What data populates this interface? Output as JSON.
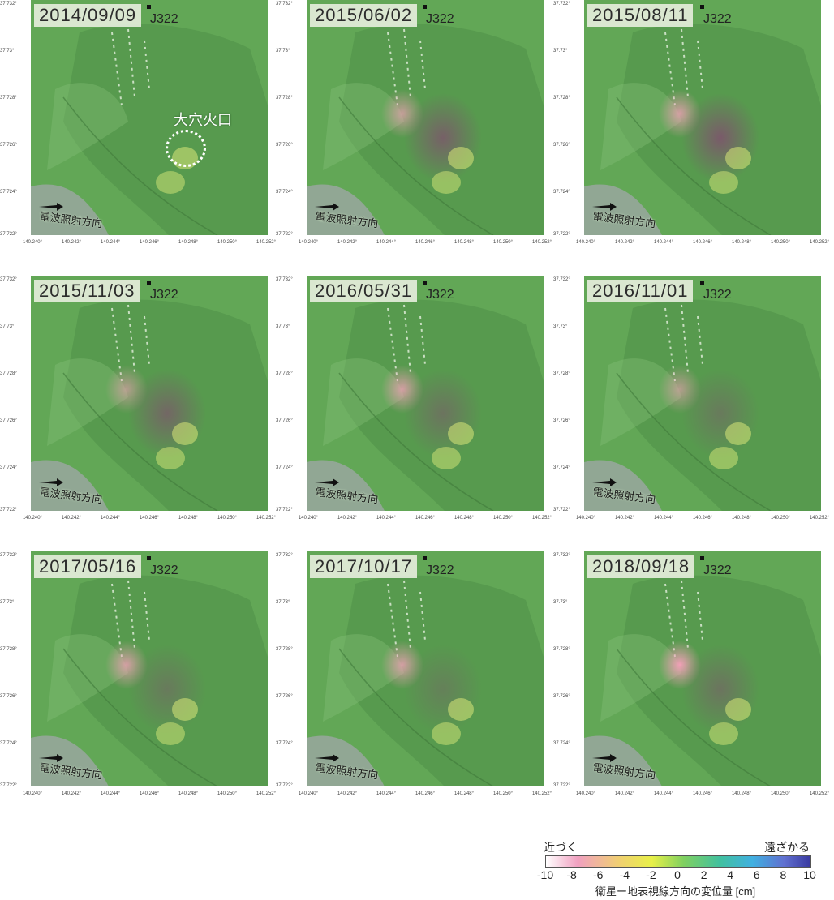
{
  "panels": [
    {
      "date": "2014/09/09",
      "station": "J322",
      "radar": "電波照射方向",
      "crater": "大穴火口",
      "ylabels": [
        "37.732°",
        "37.73°",
        "37.728°",
        "37.726°",
        "37.724°",
        "37.722°"
      ],
      "xlabels": [
        "140.240°",
        "140.242°",
        "140.244°",
        "140.246°",
        "140.248°",
        "140.250°",
        "140.252°"
      ],
      "uplift": 0.0,
      "subside": 0.0
    },
    {
      "date": "2015/06/02",
      "station": "J322",
      "radar": "電波照射方向",
      "ylabels": [
        "37.732°",
        "37.73°",
        "37.728°",
        "37.726°",
        "37.724°",
        "37.722°"
      ],
      "xlabels": [
        "140.240°",
        "140.242°",
        "140.244°",
        "140.246°",
        "140.248°",
        "140.250°",
        "140.252°"
      ],
      "uplift": 0.7,
      "subside": 0.9
    },
    {
      "date": "2015/08/11",
      "station": "J322",
      "radar": "電波照射方向",
      "ylabels": [
        "37.732°",
        "37.73°",
        "37.728°",
        "37.726°",
        "37.724°",
        "37.722°"
      ],
      "xlabels": [
        "140.240°",
        "140.242°",
        "140.244°",
        "140.246°",
        "140.248°",
        "140.250°",
        "140.252°"
      ],
      "uplift": 0.8,
      "subside": 1.0
    },
    {
      "date": "2015/11/03",
      "station": "J322",
      "radar": "電波照射方向",
      "ylabels": [
        "37.732°",
        "37.73°",
        "37.728°",
        "37.726°",
        "37.724°",
        "37.722°"
      ],
      "xlabels": [
        "140.240°",
        "140.242°",
        "140.244°",
        "140.246°",
        "140.248°",
        "140.250°",
        "140.252°"
      ],
      "uplift": 0.6,
      "subside": 0.8
    },
    {
      "date": "2016/05/31",
      "station": "J322",
      "radar": "電波照射方向",
      "ylabels": [
        "37.732°",
        "37.73°",
        "37.728°",
        "37.726°",
        "37.724°",
        "37.722°"
      ],
      "xlabels": [
        "140.240°",
        "140.242°",
        "140.244°",
        "140.246°",
        "140.248°",
        "140.250°",
        "140.252°"
      ],
      "uplift": 0.8,
      "subside": 0.6
    },
    {
      "date": "2016/11/01",
      "station": "J322",
      "radar": "電波照射方向",
      "ylabels": [
        "37.732°",
        "37.73°",
        "37.728°",
        "37.726°",
        "37.724°",
        "37.722°"
      ],
      "xlabels": [
        "140.240°",
        "140.242°",
        "140.244°",
        "140.246°",
        "140.248°",
        "140.250°",
        "140.252°"
      ],
      "uplift": 0.6,
      "subside": 0.5
    },
    {
      "date": "2017/05/16",
      "station": "J322",
      "radar": "電波照射方向",
      "ylabels": [
        "37.732°",
        "37.73°",
        "37.728°",
        "37.726°",
        "37.724°",
        "37.722°"
      ],
      "xlabels": [
        "140.240°",
        "140.242°",
        "140.244°",
        "140.246°",
        "140.248°",
        "140.250°",
        "140.252°"
      ],
      "uplift": 0.8,
      "subside": 0.5
    },
    {
      "date": "2017/10/17",
      "station": "J322",
      "radar": "電波照射方向",
      "ylabels": [
        "37.732°",
        "37.73°",
        "37.728°",
        "37.726°",
        "37.724°",
        "37.722°"
      ],
      "xlabels": [
        "140.240°",
        "140.242°",
        "140.244°",
        "140.246°",
        "140.248°",
        "140.250°",
        "140.252°"
      ],
      "uplift": 0.8,
      "subside": 0.4
    },
    {
      "date": "2018/09/18",
      "station": "J322",
      "radar": "電波照射方向",
      "ylabels": [
        "37.732°",
        "37.73°",
        "37.728°",
        "37.726°",
        "37.724°",
        "37.722°"
      ],
      "xlabels": [
        "140.240°",
        "140.242°",
        "140.244°",
        "140.246°",
        "140.248°",
        "140.250°",
        "140.252°"
      ],
      "uplift": 1.0,
      "subside": 0.6
    }
  ],
  "legend": {
    "left_label": "近づく",
    "right_label": "遠ざかる",
    "ticks": [
      "-10",
      "-8",
      "-6",
      "-4",
      "-2",
      "0",
      "2",
      "4",
      "6",
      "8",
      "10"
    ],
    "caption": "衛星ー地表視線方向の変位量 [cm]"
  },
  "colors": {
    "ground": "#62a756",
    "ground_dark": "#4f8f48",
    "uplift": "#f2a0b8",
    "subside": "#7a5a6a",
    "crater": "#d8e878"
  }
}
